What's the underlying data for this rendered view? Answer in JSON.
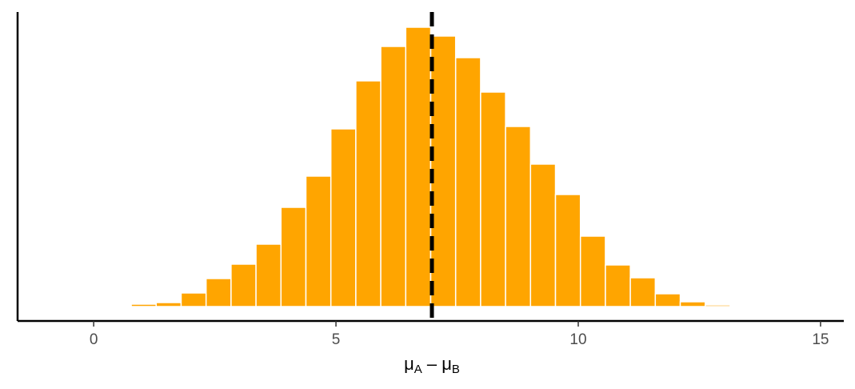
{
  "chart_data": {
    "type": "histogram",
    "bins": [
      0.26,
      0.775,
      1.29,
      1.805,
      2.32,
      2.835,
      3.35,
      3.865,
      4.38,
      4.895,
      5.41,
      5.925,
      6.44,
      6.955,
      7.47,
      7.985,
      8.5,
      9.015,
      9.53,
      10.045,
      10.56,
      11.075,
      11.59,
      12.105,
      12.62,
      13.135
    ],
    "values": [
      1,
      3,
      5,
      17,
      35,
      53,
      78,
      124,
      163,
      222,
      282,
      325,
      349,
      338,
      311,
      268,
      225,
      178,
      140,
      88,
      52,
      36,
      16,
      6,
      2
    ],
    "color": "#ffa500",
    "xlim": [
      -1.57,
      15.48
    ],
    "xticks": [
      0,
      5,
      10,
      15
    ],
    "ylim": [
      -18,
      368
    ],
    "vline": 6.98,
    "x_label": [
      "μ",
      "A",
      " – μ",
      "B"
    ]
  }
}
